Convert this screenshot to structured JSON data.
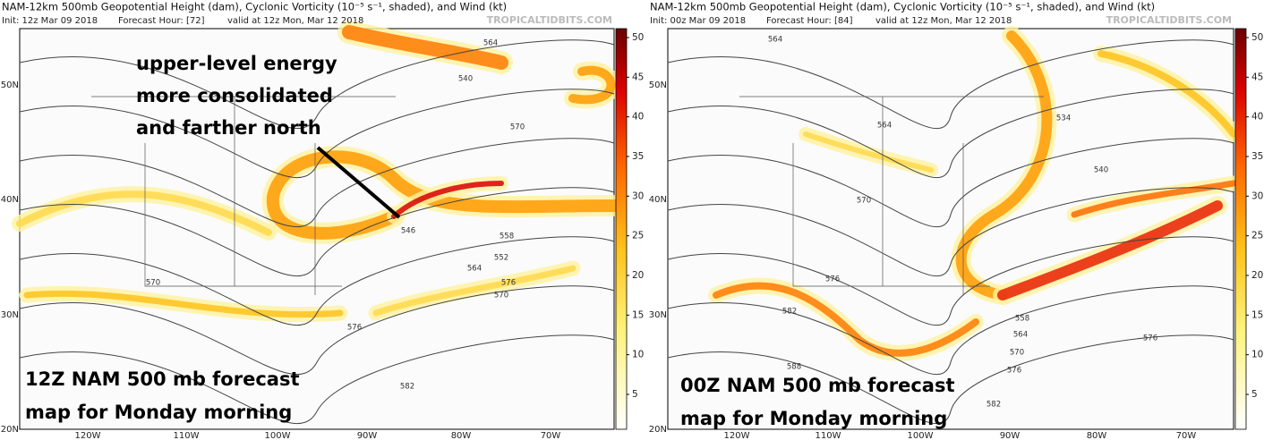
{
  "panels": [
    {
      "title": "NAM-12km 500mb Geopotential Height (dam), Cyclonic Vorticity (10⁻⁵ s⁻¹, shaded), and Wind (kt)",
      "init": "Init: 12z Mar 09 2018",
      "forecast_hour": "Forecast Hour: [72]",
      "valid": "valid at 12z Mon, Mar 12 2018",
      "source": "TROPICALTIDBITS.COM",
      "lat_labels": [
        "50N",
        "40N",
        "30N",
        "20N"
      ],
      "lon_labels": [
        "120W",
        "110W",
        "100W",
        "90W",
        "80W",
        "70W"
      ],
      "colorbar_ticks": [
        50,
        45,
        40,
        35,
        30,
        25,
        20,
        15,
        10,
        5
      ],
      "contour_labels": [
        "564",
        "540",
        "570",
        "576",
        "552",
        "546",
        "558",
        "564",
        "570",
        "576",
        "582",
        "570"
      ],
      "callout": [
        "upper-level energy",
        "more consolidated",
        "and farther north"
      ],
      "caption": [
        "12Z NAM 500 mb forecast",
        "map for Monday morning"
      ]
    },
    {
      "title": "NAM-12km 500mb Geopotential Height (dam), Cyclonic Vorticity (10⁻⁵ s⁻¹, shaded), and Wind (kt)",
      "init": "Init: 00z Mar 09 2018",
      "forecast_hour": "Forecast Hour: [84]",
      "valid": "valid at 12z Mon, Mar 12 2018",
      "source": "TROPICALTIDBITS.COM",
      "lat_labels": [
        "50N",
        "40N",
        "30N",
        "20N"
      ],
      "lon_labels": [
        "120W",
        "110W",
        "100W",
        "90W",
        "80W",
        "70W"
      ],
      "colorbar_ticks": [
        50,
        45,
        40,
        35,
        30,
        25,
        20,
        15,
        10,
        5
      ],
      "contour_labels": [
        "564",
        "534",
        "540",
        "564",
        "570",
        "576",
        "582",
        "588",
        "558",
        "564",
        "570",
        "576",
        "582",
        "576"
      ],
      "callout": [],
      "caption": [
        "00Z NAM 500 mb forecast",
        "map for Monday morning"
      ]
    }
  ]
}
